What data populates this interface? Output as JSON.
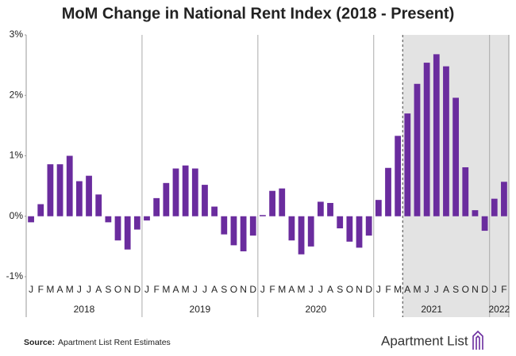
{
  "chart_data": {
    "type": "bar",
    "title": "MoM Change in National Rent Index (2018 - Present)",
    "categories": [
      "J",
      "F",
      "M",
      "A",
      "M",
      "J",
      "J",
      "A",
      "S",
      "O",
      "N",
      "D",
      "J",
      "F",
      "M",
      "A",
      "M",
      "J",
      "J",
      "A",
      "S",
      "O",
      "N",
      "D",
      "J",
      "F",
      "M",
      "A",
      "M",
      "J",
      "J",
      "A",
      "S",
      "O",
      "N",
      "D",
      "J",
      "F",
      "M",
      "A",
      "M",
      "J",
      "J",
      "A",
      "S",
      "O",
      "N",
      "D",
      "J",
      "F"
    ],
    "years": [
      "2018",
      "2019",
      "2020",
      "2021",
      "2022"
    ],
    "values": [
      -0.1,
      0.2,
      0.86,
      0.86,
      1.0,
      0.58,
      0.67,
      0.36,
      -0.1,
      -0.4,
      -0.55,
      -0.22,
      -0.07,
      0.3,
      0.55,
      0.79,
      0.84,
      0.79,
      0.52,
      0.16,
      -0.3,
      -0.48,
      -0.58,
      -0.32,
      0.02,
      0.42,
      0.46,
      -0.4,
      -0.63,
      -0.5,
      0.24,
      0.22,
      -0.2,
      -0.42,
      -0.52,
      -0.32,
      0.27,
      0.8,
      1.33,
      1.7,
      2.19,
      2.54,
      2.68,
      2.48,
      1.96,
      0.81,
      0.1,
      -0.24,
      0.29,
      0.57
    ],
    "color": "#6a2c9e",
    "ylim": [
      -1,
      3
    ],
    "yticks": [
      {
        "value": -1,
        "label": "-1%"
      },
      {
        "value": 0,
        "label": "0%"
      },
      {
        "value": 1,
        "label": "1%"
      },
      {
        "value": 2,
        "label": "2%"
      },
      {
        "value": 3,
        "label": "3%"
      }
    ],
    "grid": false,
    "source_label": "Source:",
    "source": "Apartment List Rent Estimates",
    "brand": "Apartment List"
  }
}
